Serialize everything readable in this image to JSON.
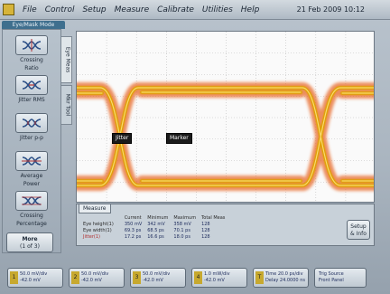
{
  "menu": {
    "items": [
      "File",
      "Control",
      "Setup",
      "Measure",
      "Calibrate",
      "Utilities",
      "Help"
    ],
    "timestamp": "21 Feb 2009  10:12"
  },
  "mode_tab": "Eye/Mask Mode",
  "toolbar": [
    {
      "label_1": "Crossing",
      "label_2": "Ratio"
    },
    {
      "label_1": "Jitter RMS",
      "label_2": ""
    },
    {
      "label_1": "Jitter p-p",
      "label_2": ""
    },
    {
      "label_1": "Average",
      "label_2": "Power"
    },
    {
      "label_1": "Crossing",
      "label_2": "Percentage"
    }
  ],
  "marker_box": {
    "line1": "More",
    "line2": "(1 of 3)"
  },
  "vtabs": [
    "Eye Meas",
    "Mkr Tool"
  ],
  "markers": {
    "left": "Jitter",
    "right": "Marker"
  },
  "meas": {
    "tab": "Measure",
    "headers": [
      "",
      "",
      "Current",
      "Minimum",
      "Maximum",
      "Total Meas"
    ],
    "rows": [
      [
        "Eye height(1)",
        "",
        "350 mV",
        "342 mV",
        "358 mV",
        "128"
      ],
      [
        "Eye width(1)",
        "",
        "69.3 ps",
        "68.5 ps",
        "70.1 ps",
        "128"
      ],
      [
        "Jitter(1)",
        "",
        "17.2 ps",
        "16.6 ps",
        "18.0 ps",
        "128"
      ]
    ],
    "setup": {
      "line1": "Setup",
      "line2": "& Info"
    }
  },
  "channels": [
    {
      "num": "1",
      "line1": "50.0 mV/div",
      "line2": "-42.0 mV"
    },
    {
      "num": "2",
      "line1": "50.0 mV/div",
      "line2": "-42.0 mV"
    },
    {
      "num": "3",
      "line1": "50.0 mV/div",
      "line2": "-42.0 mV"
    },
    {
      "num": "4",
      "line1": "1.0 mW/div",
      "line2": "-42.0 mV"
    },
    {
      "num": "T",
      "line1": "Time 20.0 ps/div",
      "line2": "Delay 24.0000 ns"
    },
    {
      "num": "",
      "line1": "Trig Source",
      "line2": "Front Panel"
    }
  ],
  "colors": {
    "eye_core": "#e0a000",
    "eye_edge": "#e86a2c",
    "grid": "#bdbdbd",
    "meas_text": "#1d2b5c"
  },
  "icons": [
    "app-icon",
    "crossing-ratio-icon",
    "jitter-rms-icon",
    "jitter-pp-icon",
    "average-power-icon",
    "crossing-percentage-icon"
  ]
}
